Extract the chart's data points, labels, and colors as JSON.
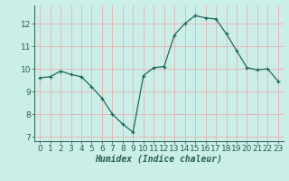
{
  "xlabel": "Humidex (Indice chaleur)",
  "ylabel": "",
  "background_color": "#cceee8",
  "grid_color": "#e8b0b0",
  "line_color": "#1a6b5a",
  "marker_color": "#1a6b5a",
  "x_values": [
    0,
    1,
    2,
    3,
    4,
    5,
    6,
    7,
    8,
    9,
    10,
    11,
    12,
    13,
    14,
    15,
    16,
    17,
    18,
    19,
    20,
    21,
    22,
    23
  ],
  "y_values": [
    9.6,
    9.65,
    9.9,
    9.75,
    9.65,
    9.2,
    8.7,
    8.0,
    7.55,
    7.2,
    9.7,
    10.05,
    10.1,
    11.5,
    12.0,
    12.35,
    12.25,
    12.2,
    11.55,
    10.8,
    10.05,
    9.95,
    10.0,
    9.45
  ],
  "ylim": [
    6.8,
    12.8
  ],
  "xlim": [
    -0.5,
    23.5
  ],
  "yticks": [
    7,
    8,
    9,
    10,
    11,
    12
  ],
  "xticks": [
    0,
    1,
    2,
    3,
    4,
    5,
    6,
    7,
    8,
    9,
    10,
    11,
    12,
    13,
    14,
    15,
    16,
    17,
    18,
    19,
    20,
    21,
    22,
    23
  ],
  "axis_color": "#2a6050",
  "tick_color": "#2a6050",
  "label_fontsize": 7,
  "tick_fontsize": 6.5
}
